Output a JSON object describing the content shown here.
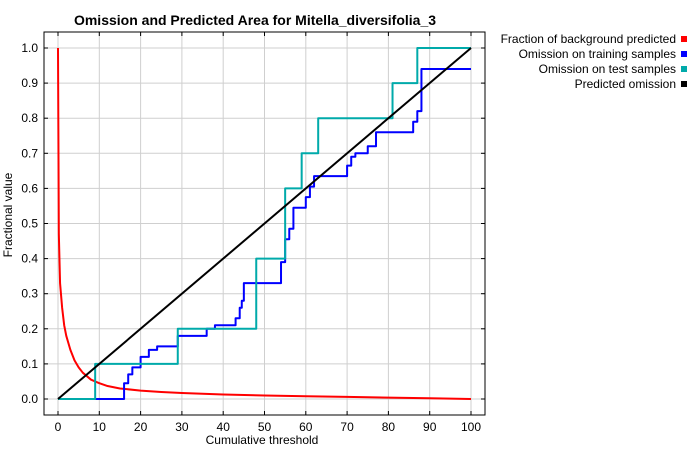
{
  "chart_data": {
    "type": "line",
    "title": "Omission and Predicted Area for Mitella_diversifolia_3",
    "xlabel": "Cumulative threshold",
    "ylabel": "Fractional value",
    "xlim": [
      0,
      100
    ],
    "ylim": [
      0,
      1.0
    ],
    "xticks": [
      "0",
      "10",
      "20",
      "30",
      "40",
      "50",
      "60",
      "70",
      "80",
      "90",
      "100"
    ],
    "yticks": [
      "0.0",
      "0.1",
      "0.2",
      "0.3",
      "0.4",
      "0.5",
      "0.6",
      "0.7",
      "0.8",
      "0.9",
      "1.0"
    ],
    "grid": true,
    "legend_position": "outside-top-right",
    "series": [
      {
        "name": "Fraction of background predicted",
        "color": "#ff0000",
        "x": [
          0,
          0.2,
          0.5,
          1,
          1.5,
          2,
          3,
          4,
          5,
          6,
          7,
          8,
          10,
          12,
          15,
          20,
          25,
          30,
          40,
          50,
          60,
          70,
          80,
          90,
          100
        ],
        "y": [
          1.0,
          0.47,
          0.33,
          0.26,
          0.21,
          0.18,
          0.14,
          0.11,
          0.09,
          0.075,
          0.065,
          0.055,
          0.045,
          0.037,
          0.03,
          0.024,
          0.02,
          0.017,
          0.013,
          0.01,
          0.008,
          0.006,
          0.004,
          0.002,
          0.0
        ]
      },
      {
        "name": "Omission on training samples",
        "color": "#0000ff",
        "x": [
          0,
          16,
          16,
          17,
          17,
          18,
          18,
          20,
          20,
          22,
          22,
          24,
          24,
          29,
          29,
          36,
          36,
          38,
          38,
          43,
          43,
          44,
          44,
          44.5,
          44.5,
          45,
          45,
          54,
          54,
          55,
          55,
          56,
          56,
          57,
          57,
          60,
          60,
          61,
          61,
          62,
          62,
          70,
          70,
          71,
          71,
          72,
          72,
          75,
          75,
          77,
          77,
          80,
          80,
          86,
          86,
          87,
          87,
          88,
          88,
          100
        ],
        "y": [
          0,
          0,
          0.045,
          0.045,
          0.07,
          0.07,
          0.09,
          0.09,
          0.12,
          0.12,
          0.14,
          0.14,
          0.15,
          0.15,
          0.18,
          0.18,
          0.2,
          0.2,
          0.21,
          0.21,
          0.23,
          0.23,
          0.26,
          0.26,
          0.28,
          0.28,
          0.33,
          0.33,
          0.39,
          0.39,
          0.455,
          0.455,
          0.485,
          0.485,
          0.545,
          0.545,
          0.575,
          0.575,
          0.605,
          0.605,
          0.635,
          0.635,
          0.665,
          0.665,
          0.69,
          0.69,
          0.7,
          0.7,
          0.72,
          0.72,
          0.76,
          0.76,
          0.76,
          0.76,
          0.79,
          0.79,
          0.82,
          0.82,
          0.94,
          0.94
        ]
      },
      {
        "name": "Omission on test samples",
        "color": "#00aaaa",
        "x": [
          0,
          9,
          9,
          29,
          29,
          48,
          48,
          55,
          55,
          59,
          59,
          63,
          63,
          81,
          81,
          87,
          87,
          100
        ],
        "y": [
          0,
          0,
          0.1,
          0.1,
          0.2,
          0.2,
          0.4,
          0.4,
          0.6,
          0.6,
          0.7,
          0.7,
          0.8,
          0.8,
          0.9,
          0.9,
          1.0,
          1.0
        ]
      },
      {
        "name": "Predicted omission",
        "color": "#000000",
        "x": [
          0,
          100
        ],
        "y": [
          0,
          1.0
        ]
      }
    ]
  }
}
